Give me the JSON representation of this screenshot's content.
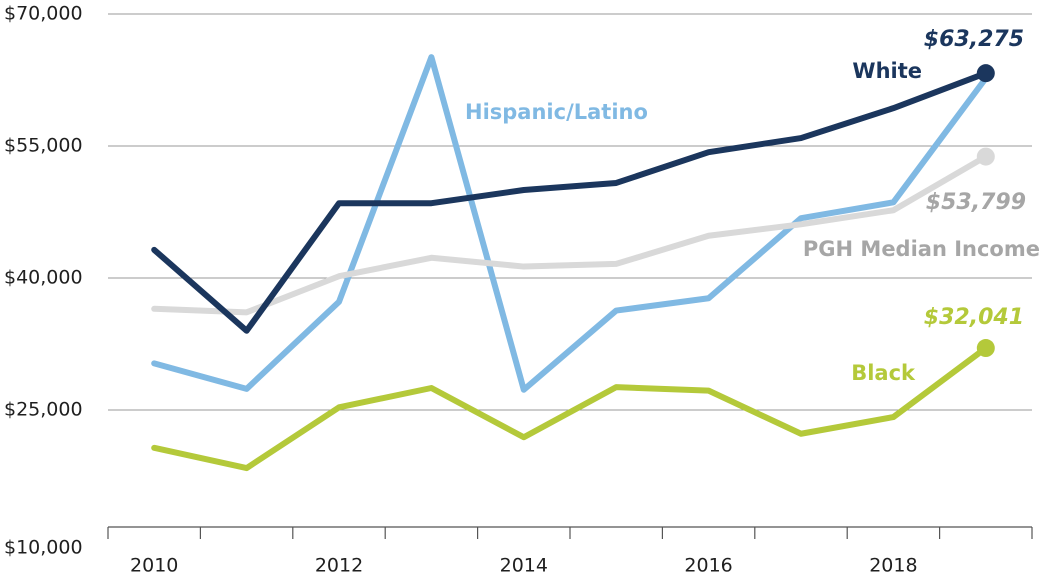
{
  "chart_data": {
    "type": "line",
    "x": [
      2010,
      2011,
      2012,
      2013,
      2014,
      2015,
      2016,
      2017,
      2018,
      2019
    ],
    "xlim": [
      2009.5,
      2019.5
    ],
    "xticks": [
      2010,
      2012,
      2014,
      2016,
      2018
    ],
    "ylim": [
      10000,
      70000
    ],
    "yticks": [
      {
        "value": 10000,
        "label": "$10,000"
      },
      {
        "value": 25000,
        "label": "$25,000"
      },
      {
        "value": 40000,
        "label": "$40,000"
      },
      {
        "value": 55000,
        "label": "$55,000"
      },
      {
        "value": 70000,
        "label": "$70,000"
      }
    ],
    "grid": true,
    "series": [
      {
        "name": "Hispanic/Latino",
        "color": "#80b9e3",
        "values": [
          30300,
          27400,
          37300,
          65100,
          27300,
          36300,
          37700,
          46800,
          48600,
          62700
        ]
      },
      {
        "name": "PGH Median Income",
        "color": "#d9d9d9",
        "values": [
          36500,
          36100,
          40200,
          42300,
          41300,
          41600,
          44800,
          46100,
          47700,
          53799
        ],
        "value_labels": [
          null,
          null,
          null,
          null,
          null,
          null,
          null,
          null,
          null,
          "$53,799"
        ]
      },
      {
        "name": "White",
        "color": "#1b365d",
        "values": [
          43200,
          34000,
          48500,
          48500,
          50000,
          50800,
          54300,
          55900,
          59300,
          63275
        ],
        "value_labels": [
          null,
          null,
          null,
          null,
          null,
          null,
          null,
          null,
          null,
          "$63,275"
        ]
      },
      {
        "name": "Black",
        "color": "#b4c93a",
        "values": [
          20700,
          18400,
          25300,
          27500,
          21900,
          27600,
          27200,
          22300,
          24200,
          32041
        ],
        "value_labels": [
          null,
          null,
          null,
          null,
          null,
          null,
          null,
          null,
          null,
          "$32,041"
        ]
      }
    ]
  }
}
